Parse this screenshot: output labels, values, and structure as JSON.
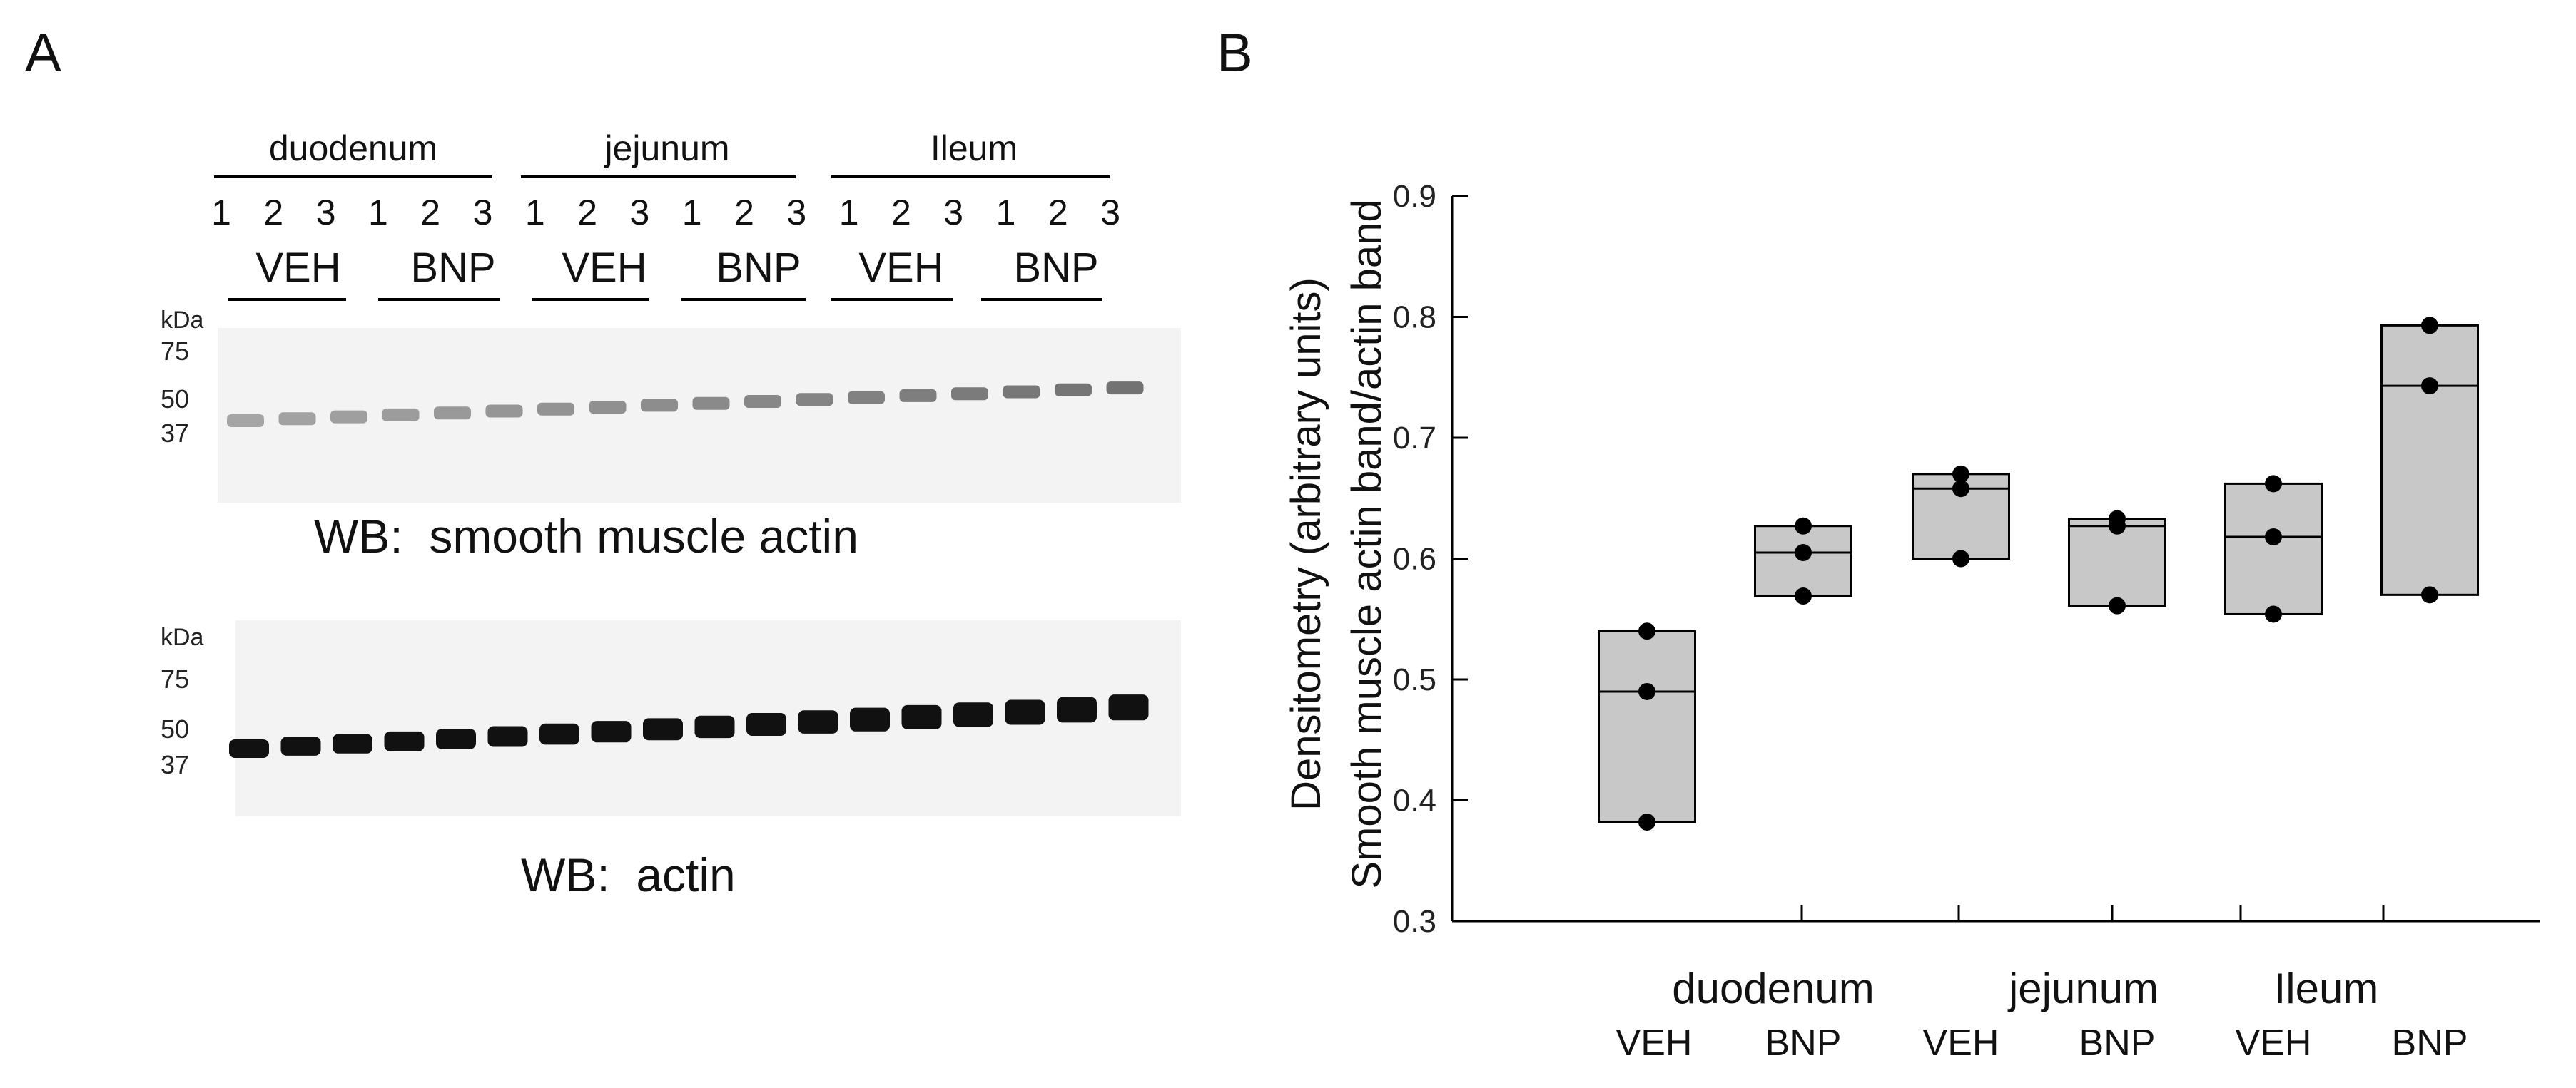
{
  "panel_a": {
    "label": "A",
    "tissues": [
      "duodenum",
      "jejunum",
      "Ileum"
    ],
    "lane_numbers": [
      "1",
      "2",
      "3",
      "1",
      "2",
      "3",
      "1",
      "2",
      "3",
      "1",
      "2",
      "3",
      "1",
      "2",
      "3",
      "1",
      "2",
      "3"
    ],
    "treatments": [
      "VEH",
      "BNP",
      "VEH",
      "BNP",
      "VEH",
      "BNP"
    ],
    "blot_top": {
      "kda_label": "kDa",
      "markers": [
        "75",
        "50",
        "37"
      ],
      "caption": "WB:  smooth muscle actin"
    },
    "blot_bottom": {
      "kda_label": "kDa",
      "markers": [
        "75",
        "50",
        "37"
      ],
      "caption": "WB:  actin"
    }
  },
  "panel_b": {
    "label": "B",
    "chart_data": {
      "type": "box",
      "ylabel_line1": "Densitometry (arbitrary units)",
      "ylabel_line2": "Smooth muscle actin band/actin band",
      "ylim": [
        0.3,
        0.9
      ],
      "yticks": [
        "0.3",
        "0.4",
        "0.5",
        "0.6",
        "0.7",
        "0.8",
        "0.9"
      ],
      "tissue_labels": [
        "duodenum",
        "jejunum",
        "Ileum"
      ],
      "categories": [
        "VEH",
        "BNP",
        "VEH",
        "BNP",
        "VEH",
        "BNP"
      ],
      "groups": [
        {
          "tissue": "duodenum",
          "treatment": "VEH",
          "points": [
            0.54,
            0.49,
            0.382
          ],
          "box": [
            0.382,
            0.49,
            0.54
          ]
        },
        {
          "tissue": "duodenum",
          "treatment": "BNP",
          "points": [
            0.627,
            0.605,
            0.569
          ],
          "box": [
            0.569,
            0.605,
            0.627
          ]
        },
        {
          "tissue": "jejunum",
          "treatment": "VEH",
          "points": [
            0.67,
            0.658,
            0.6
          ],
          "box": [
            0.6,
            0.658,
            0.67
          ]
        },
        {
          "tissue": "jejunum",
          "treatment": "BNP",
          "points": [
            0.633,
            0.627,
            0.561
          ],
          "box": [
            0.561,
            0.627,
            0.633
          ]
        },
        {
          "tissue": "Ileum",
          "treatment": "VEH",
          "points": [
            0.662,
            0.618,
            0.554
          ],
          "box": [
            0.554,
            0.618,
            0.662
          ]
        },
        {
          "tissue": "Ileum",
          "treatment": "BNP",
          "points": [
            0.793,
            0.743,
            0.57
          ],
          "box": [
            0.57,
            0.743,
            0.793
          ]
        }
      ],
      "colors": {
        "box_fill": "#c8c8c8",
        "point": "#000000",
        "axis": "#000000"
      }
    }
  }
}
